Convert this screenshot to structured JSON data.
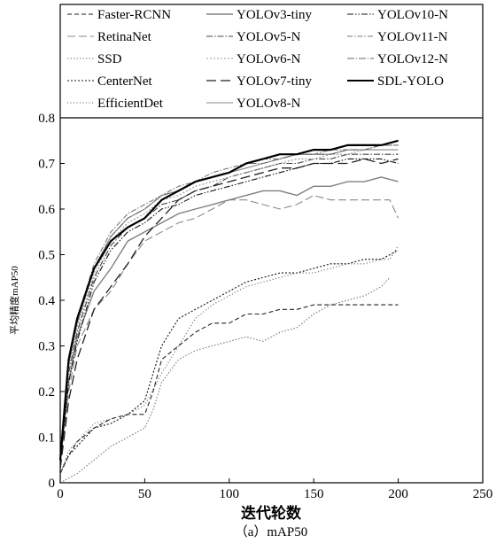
{
  "chart_data": {
    "type": "line",
    "title": "",
    "caption": "（a）mAP50",
    "xlabel": "迭代轮数",
    "ylabel": "平均精度mAP50",
    "xlim": [
      0,
      250
    ],
    "ylim": [
      0,
      0.8
    ],
    "xticks": [
      "0",
      "50",
      "100",
      "150",
      "200",
      "250"
    ],
    "yticks": [
      "0",
      "0.1",
      "0.2",
      "0.3",
      "0.4",
      "0.5",
      "0.6",
      "0.7",
      "0.8"
    ],
    "grid": false,
    "legend_position": "top",
    "series": [
      {
        "name": "Faster-RCNN",
        "color": "#222222",
        "dash": "5,3",
        "width": 1.1,
        "x": [
          0,
          5,
          10,
          20,
          30,
          40,
          45,
          50,
          55,
          60,
          70,
          80,
          90,
          100,
          110,
          120,
          130,
          140,
          150,
          160,
          170,
          180,
          190,
          200
        ],
        "y": [
          0.02,
          0.06,
          0.09,
          0.12,
          0.14,
          0.15,
          0.15,
          0.15,
          0.2,
          0.27,
          0.3,
          0.33,
          0.35,
          0.35,
          0.37,
          0.37,
          0.38,
          0.38,
          0.39,
          0.39,
          0.39,
          0.39,
          0.39,
          0.39
        ]
      },
      {
        "name": "RetinaNet",
        "color": "#888888",
        "dash": "9,4",
        "width": 1.1,
        "x": [
          0,
          5,
          10,
          20,
          30,
          40,
          50,
          60,
          70,
          80,
          90,
          100,
          110,
          120,
          130,
          140,
          150,
          160,
          170,
          180,
          190,
          195,
          200
        ],
        "y": [
          0.05,
          0.2,
          0.3,
          0.38,
          0.42,
          0.48,
          0.53,
          0.55,
          0.57,
          0.58,
          0.6,
          0.62,
          0.62,
          0.61,
          0.6,
          0.61,
          0.63,
          0.62,
          0.62,
          0.62,
          0.62,
          0.62,
          0.58
        ]
      },
      {
        "name": "SSD",
        "color": "#777777",
        "dash": "1.5,2",
        "width": 1.1,
        "x": [
          0,
          5,
          10,
          20,
          30,
          40,
          50,
          55,
          60,
          70,
          80,
          90,
          100,
          110,
          120,
          130,
          140,
          150,
          160,
          170,
          180,
          190,
          195
        ],
        "y": [
          0.0,
          0.01,
          0.02,
          0.05,
          0.08,
          0.1,
          0.12,
          0.16,
          0.22,
          0.27,
          0.29,
          0.3,
          0.31,
          0.32,
          0.31,
          0.33,
          0.34,
          0.37,
          0.39,
          0.4,
          0.41,
          0.43,
          0.45
        ]
      },
      {
        "name": "CenterNet",
        "color": "#111111",
        "dash": "2,2",
        "width": 1.1,
        "x": [
          0,
          5,
          10,
          20,
          30,
          40,
          50,
          55,
          60,
          70,
          80,
          90,
          100,
          110,
          120,
          130,
          140,
          150,
          160,
          170,
          180,
          190,
          200
        ],
        "y": [
          0.02,
          0.06,
          0.08,
          0.12,
          0.13,
          0.15,
          0.18,
          0.24,
          0.3,
          0.36,
          0.38,
          0.4,
          0.42,
          0.44,
          0.45,
          0.46,
          0.46,
          0.47,
          0.48,
          0.48,
          0.49,
          0.49,
          0.51
        ]
      },
      {
        "name": "EfficientDet",
        "color": "#555555",
        "dash": "1,2.5",
        "width": 1.1,
        "x": [
          0,
          5,
          10,
          20,
          30,
          40,
          50,
          60,
          70,
          80,
          90,
          100,
          110,
          120,
          130,
          140,
          150,
          160,
          170,
          180,
          190,
          195,
          200
        ],
        "y": [
          0.02,
          0.07,
          0.09,
          0.13,
          0.14,
          0.15,
          0.17,
          0.24,
          0.3,
          0.36,
          0.39,
          0.41,
          0.43,
          0.44,
          0.45,
          0.46,
          0.46,
          0.47,
          0.48,
          0.48,
          0.49,
          0.49,
          0.52
        ]
      },
      {
        "name": "YOLOv3-tiny",
        "color": "#808080",
        "dash": "",
        "width": 1.4,
        "x": [
          0,
          5,
          10,
          20,
          30,
          40,
          50,
          60,
          70,
          80,
          90,
          100,
          110,
          120,
          130,
          140,
          150,
          160,
          170,
          180,
          190,
          200
        ],
        "y": [
          0.05,
          0.22,
          0.32,
          0.42,
          0.47,
          0.53,
          0.55,
          0.57,
          0.59,
          0.6,
          0.61,
          0.62,
          0.63,
          0.64,
          0.64,
          0.63,
          0.65,
          0.65,
          0.66,
          0.66,
          0.67,
          0.66
        ]
      },
      {
        "name": "YOLOv5-N",
        "color": "#444444",
        "dash": "7,2,1.5,2",
        "width": 1.1,
        "x": [
          0,
          5,
          10,
          20,
          30,
          40,
          50,
          60,
          70,
          80,
          90,
          100,
          110,
          120,
          130,
          140,
          150,
          160,
          170,
          180,
          190,
          200
        ],
        "y": [
          0.05,
          0.24,
          0.33,
          0.45,
          0.52,
          0.56,
          0.58,
          0.61,
          0.62,
          0.64,
          0.65,
          0.67,
          0.68,
          0.69,
          0.7,
          0.7,
          0.71,
          0.71,
          0.72,
          0.72,
          0.72,
          0.72
        ]
      },
      {
        "name": "YOLOv6-N",
        "color": "#999999",
        "dash": "2,2",
        "width": 1.1,
        "x": [
          0,
          5,
          10,
          20,
          30,
          40,
          50,
          60,
          70,
          80,
          90,
          100,
          110,
          120,
          130,
          140,
          150,
          160,
          170,
          180,
          190,
          200
        ],
        "y": [
          0.05,
          0.25,
          0.34,
          0.46,
          0.53,
          0.57,
          0.59,
          0.62,
          0.63,
          0.65,
          0.66,
          0.67,
          0.68,
          0.69,
          0.7,
          0.71,
          0.71,
          0.72,
          0.72,
          0.73,
          0.73,
          0.73
        ]
      },
      {
        "name": "YOLOv7-tiny",
        "color": "#222222",
        "dash": "11,5",
        "width": 1.3,
        "x": [
          0,
          5,
          10,
          20,
          30,
          40,
          50,
          60,
          70,
          80,
          90,
          100,
          110,
          120,
          130,
          140,
          150,
          160,
          170,
          180,
          190,
          200
        ],
        "y": [
          0.03,
          0.18,
          0.27,
          0.38,
          0.43,
          0.48,
          0.54,
          0.58,
          0.62,
          0.64,
          0.65,
          0.66,
          0.67,
          0.68,
          0.69,
          0.69,
          0.7,
          0.7,
          0.7,
          0.71,
          0.7,
          0.71
        ]
      },
      {
        "name": "YOLOv8-N",
        "color": "#8a8a8a",
        "dash": "",
        "width": 1.1,
        "x": [
          0,
          5,
          10,
          20,
          30,
          40,
          50,
          60,
          70,
          80,
          90,
          100,
          110,
          120,
          130,
          140,
          150,
          160,
          170,
          180,
          190,
          200
        ],
        "y": [
          0.05,
          0.26,
          0.35,
          0.47,
          0.54,
          0.58,
          0.6,
          0.63,
          0.64,
          0.66,
          0.67,
          0.68,
          0.69,
          0.7,
          0.71,
          0.72,
          0.72,
          0.72,
          0.73,
          0.73,
          0.73,
          0.73
        ]
      },
      {
        "name": "YOLOv10-N",
        "color": "#111111",
        "dash": "7,2,1.5,2,1.5,2",
        "width": 1.1,
        "x": [
          0,
          5,
          10,
          20,
          30,
          40,
          50,
          60,
          70,
          80,
          90,
          100,
          110,
          120,
          130,
          140,
          150,
          160,
          170,
          180,
          190,
          200
        ],
        "y": [
          0.04,
          0.22,
          0.31,
          0.44,
          0.51,
          0.55,
          0.57,
          0.6,
          0.61,
          0.63,
          0.64,
          0.65,
          0.66,
          0.67,
          0.68,
          0.69,
          0.7,
          0.7,
          0.71,
          0.71,
          0.71,
          0.7
        ]
      },
      {
        "name": "YOLOv11-N",
        "color": "#777777",
        "dash": "6,2,1.5,2",
        "width": 1.1,
        "x": [
          0,
          5,
          10,
          20,
          30,
          40,
          50,
          60,
          70,
          80,
          90,
          100,
          110,
          120,
          130,
          140,
          150,
          160,
          170,
          180,
          190,
          200
        ],
        "y": [
          0.05,
          0.27,
          0.36,
          0.48,
          0.55,
          0.59,
          0.61,
          0.63,
          0.65,
          0.66,
          0.68,
          0.69,
          0.7,
          0.71,
          0.71,
          0.72,
          0.72,
          0.73,
          0.73,
          0.73,
          0.74,
          0.74
        ]
      },
      {
        "name": "YOLOv12-N",
        "color": "#666666",
        "dash": "8,2,1,2",
        "width": 1.1,
        "x": [
          0,
          5,
          10,
          20,
          30,
          40,
          50,
          60,
          70,
          80,
          90,
          100,
          110,
          120,
          130,
          140,
          150,
          160,
          170,
          180,
          190,
          200
        ],
        "y": [
          0.05,
          0.26,
          0.35,
          0.47,
          0.54,
          0.58,
          0.6,
          0.63,
          0.64,
          0.66,
          0.67,
          0.68,
          0.7,
          0.7,
          0.71,
          0.72,
          0.72,
          0.72,
          0.73,
          0.73,
          0.74,
          0.74
        ]
      },
      {
        "name": "SDL-YOLO",
        "color": "#000000",
        "dash": "",
        "width": 2.2,
        "x": [
          0,
          5,
          10,
          20,
          30,
          40,
          50,
          55,
          60,
          70,
          80,
          90,
          100,
          110,
          120,
          130,
          140,
          150,
          160,
          170,
          180,
          190,
          200
        ],
        "y": [
          0.05,
          0.27,
          0.36,
          0.47,
          0.53,
          0.56,
          0.58,
          0.6,
          0.62,
          0.64,
          0.66,
          0.67,
          0.68,
          0.7,
          0.71,
          0.72,
          0.72,
          0.73,
          0.73,
          0.74,
          0.74,
          0.74,
          0.75
        ]
      }
    ]
  }
}
